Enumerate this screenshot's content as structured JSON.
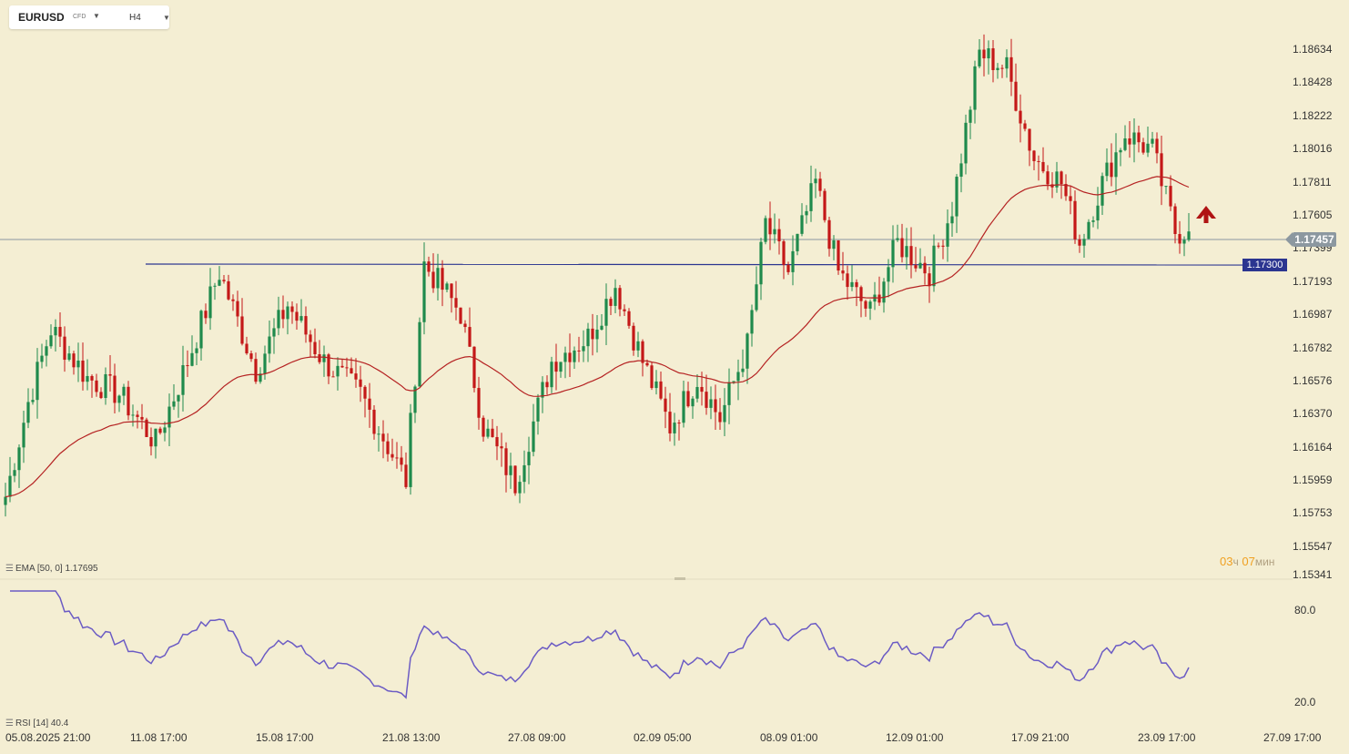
{
  "toolbar": {
    "symbol": "EURUSD",
    "symbol_type": "CFD",
    "timeframe": "H4"
  },
  "colors": {
    "background": "#f4eed3",
    "bull": "#1f8a4c",
    "bear": "#c41818",
    "ema": "#b52222",
    "rsi": "#6b5bc4",
    "level": "#2b3590",
    "current_price_tag": "#8c98a0",
    "arrow": "#b01414"
  },
  "price_axis": [
    "1.18634",
    "1.18428",
    "1.18222",
    "1.18016",
    "1.17811",
    "1.17605",
    "1.17399",
    "1.17193",
    "1.16987",
    "1.16782",
    "1.16576",
    "1.16370",
    "1.16164",
    "1.15959",
    "1.15753",
    "1.15547",
    "1.15341"
  ],
  "current_price": "1.17457",
  "level_price": "1.17300",
  "ema_label": "EMA [50, 0] 1.17695",
  "rsi_label": "RSI [14] 40.4",
  "rsi_levels": [
    "80.0",
    "20.0"
  ],
  "countdown": {
    "hours": "03",
    "hours_unit": "ч",
    "minutes": "07",
    "minutes_unit": "мин"
  },
  "signal_arrow": "up-arrow-icon",
  "time_axis": [
    "05.08.2025  21:00",
    "11.08  17:00",
    "15.08  17:00",
    "21.08  13:00",
    "27.08  09:00",
    "02.09  05:00",
    "08.09  01:00",
    "12.09  01:00",
    "17.09  21:00",
    "23.09  17:00",
    "27.09  17:00"
  ],
  "chart_data": {
    "type": "candlestick",
    "symbol": "EURUSD",
    "timeframe": "H4",
    "price_range": [
      1.1534,
      1.1875
    ],
    "current_price": 1.17457,
    "horizontal_level": 1.173,
    "anchors": [
      {
        "i": 0,
        "close": 1.1582,
        "high": 1.1592,
        "low": 1.1573
      },
      {
        "i": 5,
        "close": 1.164,
        "high": 1.1645,
        "low": 1.162
      },
      {
        "i": 10,
        "close": 1.1685,
        "high": 1.1695,
        "low": 1.166
      },
      {
        "i": 18,
        "close": 1.1655,
        "high": 1.1675,
        "low": 1.1625
      },
      {
        "i": 25,
        "close": 1.1645,
        "high": 1.166,
        "low": 1.163
      },
      {
        "i": 33,
        "close": 1.1615,
        "high": 1.1625,
        "low": 1.16
      },
      {
        "i": 40,
        "close": 1.1665,
        "high": 1.168,
        "low": 1.1645
      },
      {
        "i": 47,
        "close": 1.172,
        "high": 1.173,
        "low": 1.17
      },
      {
        "i": 55,
        "close": 1.166,
        "high": 1.1675,
        "low": 1.1645
      },
      {
        "i": 62,
        "close": 1.17,
        "high": 1.171,
        "low": 1.1685
      },
      {
        "i": 70,
        "close": 1.1665,
        "high": 1.168,
        "low": 1.165
      },
      {
        "i": 78,
        "close": 1.1645,
        "high": 1.1655,
        "low": 1.163
      },
      {
        "i": 88,
        "close": 1.1592,
        "high": 1.16,
        "low": 1.1585
      },
      {
        "i": 92,
        "close": 1.1725,
        "high": 1.1745,
        "low": 1.1705
      },
      {
        "i": 100,
        "close": 1.1695,
        "high": 1.171,
        "low": 1.1675
      },
      {
        "i": 105,
        "close": 1.1625,
        "high": 1.164,
        "low": 1.161
      },
      {
        "i": 112,
        "close": 1.159,
        "high": 1.1605,
        "low": 1.1575
      },
      {
        "i": 120,
        "close": 1.1665,
        "high": 1.168,
        "low": 1.1645
      },
      {
        "i": 128,
        "close": 1.168,
        "high": 1.169,
        "low": 1.1665
      },
      {
        "i": 134,
        "close": 1.1712,
        "high": 1.1735,
        "low": 1.1695
      },
      {
        "i": 140,
        "close": 1.1665,
        "high": 1.1685,
        "low": 1.165
      },
      {
        "i": 146,
        "close": 1.1625,
        "high": 1.164,
        "low": 1.1615
      },
      {
        "i": 152,
        "close": 1.1655,
        "high": 1.1665,
        "low": 1.164
      },
      {
        "i": 157,
        "close": 1.163,
        "high": 1.164,
        "low": 1.1625
      },
      {
        "i": 163,
        "close": 1.1675,
        "high": 1.169,
        "low": 1.166
      },
      {
        "i": 167,
        "close": 1.175,
        "high": 1.1765,
        "low": 1.173
      },
      {
        "i": 172,
        "close": 1.172,
        "high": 1.1735,
        "low": 1.1705
      },
      {
        "i": 178,
        "close": 1.1775,
        "high": 1.179,
        "low": 1.1755
      },
      {
        "i": 183,
        "close": 1.172,
        "high": 1.173,
        "low": 1.1705
      },
      {
        "i": 190,
        "close": 1.1695,
        "high": 1.1715,
        "low": 1.168
      },
      {
        "i": 196,
        "close": 1.1738,
        "high": 1.1748,
        "low": 1.172
      },
      {
        "i": 203,
        "close": 1.172,
        "high": 1.1735,
        "low": 1.171
      },
      {
        "i": 208,
        "close": 1.176,
        "high": 1.177,
        "low": 1.174
      },
      {
        "i": 214,
        "close": 1.1855,
        "high": 1.1862,
        "low": 1.184
      },
      {
        "i": 220,
        "close": 1.1845,
        "high": 1.1853,
        "low": 1.183
      },
      {
        "i": 226,
        "close": 1.179,
        "high": 1.18,
        "low": 1.1775
      },
      {
        "i": 232,
        "close": 1.1775,
        "high": 1.1785,
        "low": 1.176
      },
      {
        "i": 236,
        "close": 1.1738,
        "high": 1.175,
        "low": 1.1728
      },
      {
        "i": 241,
        "close": 1.1775,
        "high": 1.1785,
        "low": 1.176
      },
      {
        "i": 246,
        "close": 1.1805,
        "high": 1.1815,
        "low": 1.179
      },
      {
        "i": 252,
        "close": 1.1795,
        "high": 1.1805,
        "low": 1.178
      },
      {
        "i": 257,
        "close": 1.1745,
        "high": 1.1755,
        "low": 1.1735
      },
      {
        "i": 260,
        "close": 1.1745,
        "high": 1.175,
        "low": 1.1738
      }
    ],
    "ema": {
      "name": "EMA [50, 0]",
      "last": 1.17695
    },
    "rsi": {
      "name": "RSI [14]",
      "last": 40.4,
      "levels": [
        80,
        20
      ]
    }
  }
}
